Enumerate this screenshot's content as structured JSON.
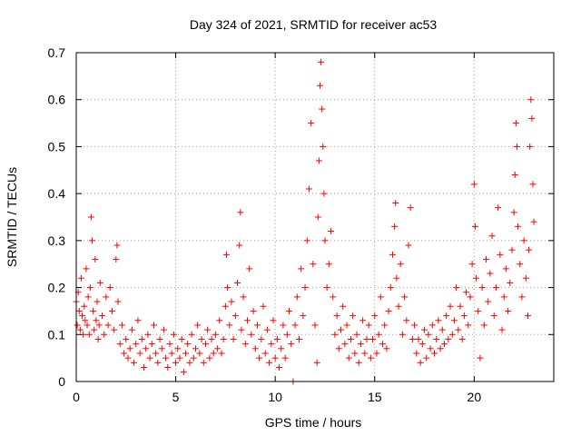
{
  "chart_data": {
    "type": "scatter",
    "title": "Day 324 of 2021, SRMTID for receiver ac53",
    "xlabel": "GPS time / hours",
    "ylabel": "SRMTID / TECUs",
    "xlim": [
      0,
      24
    ],
    "ylim": [
      0,
      0.7
    ],
    "xticks": [
      0,
      5,
      10,
      15,
      20
    ],
    "xtick_labels": [
      "0",
      "5",
      "10",
      "15",
      "20"
    ],
    "yticks": [
      0,
      0.1,
      0.2,
      0.3,
      0.4,
      0.5,
      0.6,
      0.7
    ],
    "ytick_labels": [
      "0",
      "0.1",
      "0.2",
      "0.3",
      "0.4",
      "0.5",
      "0.6",
      "0.7"
    ],
    "grid": true,
    "marker": "+",
    "color": "#ff0000",
    "series": [
      {
        "name": "SRMTID",
        "points": [
          [
            0.0,
            0.17
          ],
          [
            0.05,
            0.12
          ],
          [
            0.1,
            0.19
          ],
          [
            0.15,
            0.15
          ],
          [
            0.2,
            0.11
          ],
          [
            0.25,
            0.22
          ],
          [
            0.3,
            0.14
          ],
          [
            0.35,
            0.1
          ],
          [
            0.4,
            0.16
          ],
          [
            0.45,
            0.13
          ],
          [
            0.5,
            0.24
          ],
          [
            0.55,
            0.12
          ],
          [
            0.6,
            0.18
          ],
          [
            0.65,
            0.1
          ],
          [
            0.7,
            0.2
          ],
          [
            0.75,
            0.35
          ],
          [
            0.8,
            0.3
          ],
          [
            0.85,
            0.15
          ],
          [
            0.9,
            0.11
          ],
          [
            0.95,
            0.26
          ],
          [
            1.0,
            0.13
          ],
          [
            1.05,
            0.17
          ],
          [
            1.1,
            0.09
          ],
          [
            1.15,
            0.12
          ],
          [
            1.2,
            0.21
          ],
          [
            1.3,
            0.14
          ],
          [
            1.4,
            0.1
          ],
          [
            1.5,
            0.18
          ],
          [
            1.6,
            0.12
          ],
          [
            1.7,
            0.2
          ],
          [
            1.8,
            0.15
          ],
          [
            1.9,
            0.11
          ],
          [
            2.0,
            0.26
          ],
          [
            2.05,
            0.29
          ],
          [
            2.1,
            0.17
          ],
          [
            2.2,
            0.08
          ],
          [
            2.3,
            0.12
          ],
          [
            2.4,
            0.06
          ],
          [
            2.5,
            0.09
          ],
          [
            2.6,
            0.05
          ],
          [
            2.7,
            0.07
          ],
          [
            2.8,
            0.11
          ],
          [
            2.9,
            0.04
          ],
          [
            3.0,
            0.08
          ],
          [
            3.1,
            0.13
          ],
          [
            3.2,
            0.06
          ],
          [
            3.3,
            0.09
          ],
          [
            3.4,
            0.03
          ],
          [
            3.5,
            0.07
          ],
          [
            3.6,
            0.1
          ],
          [
            3.7,
            0.05
          ],
          [
            3.8,
            0.08
          ],
          [
            3.9,
            0.12
          ],
          [
            4.0,
            0.06
          ],
          [
            4.1,
            0.04
          ],
          [
            4.2,
            0.09
          ],
          [
            4.3,
            0.07
          ],
          [
            4.4,
            0.11
          ],
          [
            4.5,
            0.05
          ],
          [
            4.6,
            0.03
          ],
          [
            4.7,
            0.08
          ],
          [
            4.8,
            0.06
          ],
          [
            4.9,
            0.1
          ],
          [
            5.0,
            0.04
          ],
          [
            5.1,
            0.07
          ],
          [
            5.2,
            0.05
          ],
          [
            5.3,
            0.09
          ],
          [
            5.4,
            0.02
          ],
          [
            5.5,
            0.06
          ],
          [
            5.6,
            0.08
          ],
          [
            5.7,
            0.04
          ],
          [
            5.8,
            0.1
          ],
          [
            5.9,
            0.05
          ],
          [
            6.0,
            0.07
          ],
          [
            6.1,
            0.12
          ],
          [
            6.2,
            0.06
          ],
          [
            6.3,
            0.09
          ],
          [
            6.4,
            0.04
          ],
          [
            6.5,
            0.08
          ],
          [
            6.6,
            0.11
          ],
          [
            6.7,
            0.05
          ],
          [
            6.8,
            0.09
          ],
          [
            6.9,
            0.06
          ],
          [
            7.0,
            0.1
          ],
          [
            7.1,
            0.07
          ],
          [
            7.2,
            0.13
          ],
          [
            7.3,
            0.06
          ],
          [
            7.4,
            0.09
          ],
          [
            7.5,
            0.16
          ],
          [
            7.55,
            0.27
          ],
          [
            7.6,
            0.2
          ],
          [
            7.7,
            0.12
          ],
          [
            7.8,
            0.17
          ],
          [
            7.9,
            0.09
          ],
          [
            8.0,
            0.14
          ],
          [
            8.1,
            0.21
          ],
          [
            8.2,
            0.29
          ],
          [
            8.25,
            0.36
          ],
          [
            8.3,
            0.11
          ],
          [
            8.4,
            0.18
          ],
          [
            8.5,
            0.08
          ],
          [
            8.6,
            0.13
          ],
          [
            8.7,
            0.24
          ],
          [
            8.8,
            0.1
          ],
          [
            8.9,
            0.15
          ],
          [
            9.0,
            0.07
          ],
          [
            9.1,
            0.12
          ],
          [
            9.2,
            0.05
          ],
          [
            9.3,
            0.09
          ],
          [
            9.4,
            0.16
          ],
          [
            9.5,
            0.06
          ],
          [
            9.6,
            0.11
          ],
          [
            9.7,
            0.04
          ],
          [
            9.8,
            0.08
          ],
          [
            9.9,
            0.13
          ],
          [
            10.0,
            0.05
          ],
          [
            10.1,
            0.09
          ],
          [
            10.2,
            0.03
          ],
          [
            10.3,
            0.07
          ],
          [
            10.4,
            0.12
          ],
          [
            10.5,
            0.05
          ],
          [
            10.6,
            0.1
          ],
          [
            10.7,
            0.15
          ],
          [
            10.8,
            0.08
          ],
          [
            10.9,
            0.0
          ],
          [
            11.0,
            0.12
          ],
          [
            11.1,
            0.18
          ],
          [
            11.2,
            0.09
          ],
          [
            11.3,
            0.24
          ],
          [
            11.4,
            0.14
          ],
          [
            11.5,
            0.2
          ],
          [
            11.6,
            0.3
          ],
          [
            11.7,
            0.41
          ],
          [
            11.8,
            0.55
          ],
          [
            11.9,
            0.25
          ],
          [
            12.0,
            0.12
          ],
          [
            12.1,
            0.04
          ],
          [
            12.15,
            0.35
          ],
          [
            12.2,
            0.47
          ],
          [
            12.25,
            0.63
          ],
          [
            12.3,
            0.68
          ],
          [
            12.35,
            0.58
          ],
          [
            12.4,
            0.5
          ],
          [
            12.45,
            0.4
          ],
          [
            12.5,
            0.3
          ],
          [
            12.6,
            0.2
          ],
          [
            12.7,
            0.25
          ],
          [
            12.8,
            0.32
          ],
          [
            12.9,
            0.18
          ],
          [
            13.0,
            0.1
          ],
          [
            13.1,
            0.14
          ],
          [
            13.2,
            0.07
          ],
          [
            13.3,
            0.11
          ],
          [
            13.4,
            0.16
          ],
          [
            13.5,
            0.08
          ],
          [
            13.6,
            0.12
          ],
          [
            13.7,
            0.05
          ],
          [
            13.8,
            0.09
          ],
          [
            13.9,
            0.14
          ],
          [
            14.0,
            0.06
          ],
          [
            14.1,
            0.1
          ],
          [
            14.2,
            0.04
          ],
          [
            14.3,
            0.08
          ],
          [
            14.4,
            0.13
          ],
          [
            14.5,
            0.06
          ],
          [
            14.6,
            0.09
          ],
          [
            14.7,
            0.12
          ],
          [
            14.8,
            0.05
          ],
          [
            14.9,
            0.09
          ],
          [
            15.0,
            0.14
          ],
          [
            15.1,
            0.06
          ],
          [
            15.2,
            0.1
          ],
          [
            15.3,
            0.18
          ],
          [
            15.4,
            0.08
          ],
          [
            15.5,
            0.12
          ],
          [
            15.6,
            0.07
          ],
          [
            15.7,
            0.15
          ],
          [
            15.8,
            0.2
          ],
          [
            15.9,
            0.27
          ],
          [
            16.0,
            0.33
          ],
          [
            16.05,
            0.38
          ],
          [
            16.1,
            0.22
          ],
          [
            16.2,
            0.16
          ],
          [
            16.3,
            0.25
          ],
          [
            16.4,
            0.1
          ],
          [
            16.5,
            0.18
          ],
          [
            16.6,
            0.13
          ],
          [
            16.7,
            0.29
          ],
          [
            16.8,
            0.37
          ],
          [
            16.9,
            0.09
          ],
          [
            17.0,
            0.12
          ],
          [
            17.1,
            0.06
          ],
          [
            17.2,
            0.09
          ],
          [
            17.3,
            0.04
          ],
          [
            17.4,
            0.08
          ],
          [
            17.5,
            0.11
          ],
          [
            17.6,
            0.05
          ],
          [
            17.7,
            0.1
          ],
          [
            17.8,
            0.07
          ],
          [
            17.9,
            0.12
          ],
          [
            18.0,
            0.06
          ],
          [
            18.1,
            0.09
          ],
          [
            18.2,
            0.13
          ],
          [
            18.3,
            0.07
          ],
          [
            18.4,
            0.11
          ],
          [
            18.5,
            0.08
          ],
          [
            18.6,
            0.14
          ],
          [
            18.7,
            0.09
          ],
          [
            18.8,
            0.16
          ],
          [
            18.9,
            0.1
          ],
          [
            19.0,
            0.13
          ],
          [
            19.1,
            0.2
          ],
          [
            19.2,
            0.11
          ],
          [
            19.3,
            0.16
          ],
          [
            19.4,
            0.09
          ],
          [
            19.5,
            0.14
          ],
          [
            19.6,
            0.19
          ],
          [
            19.7,
            0.12
          ],
          [
            19.8,
            0.18
          ],
          [
            19.9,
            0.25
          ],
          [
            20.0,
            0.42
          ],
          [
            20.05,
            0.33
          ],
          [
            20.1,
            0.22
          ],
          [
            20.2,
            0.15
          ],
          [
            20.3,
            0.05
          ],
          [
            20.4,
            0.2
          ],
          [
            20.5,
            0.12
          ],
          [
            20.6,
            0.26
          ],
          [
            20.7,
            0.17
          ],
          [
            20.8,
            0.23
          ],
          [
            20.9,
            0.31
          ],
          [
            21.0,
            0.14
          ],
          [
            21.1,
            0.2
          ],
          [
            21.2,
            0.37
          ],
          [
            21.3,
            0.27
          ],
          [
            21.4,
            0.11
          ],
          [
            21.5,
            0.18
          ],
          [
            21.6,
            0.24
          ],
          [
            21.7,
            0.15
          ],
          [
            21.8,
            0.21
          ],
          [
            21.9,
            0.28
          ],
          [
            22.0,
            0.36
          ],
          [
            22.05,
            0.44
          ],
          [
            22.1,
            0.55
          ],
          [
            22.15,
            0.5
          ],
          [
            22.2,
            0.33
          ],
          [
            22.3,
            0.25
          ],
          [
            22.4,
            0.18
          ],
          [
            22.5,
            0.3
          ],
          [
            22.6,
            0.22
          ],
          [
            22.7,
            0.14
          ],
          [
            22.75,
            0.28
          ],
          [
            22.8,
            0.5
          ],
          [
            22.85,
            0.6
          ],
          [
            22.9,
            0.56
          ],
          [
            22.95,
            0.42
          ],
          [
            23.0,
            0.34
          ]
        ]
      }
    ]
  }
}
